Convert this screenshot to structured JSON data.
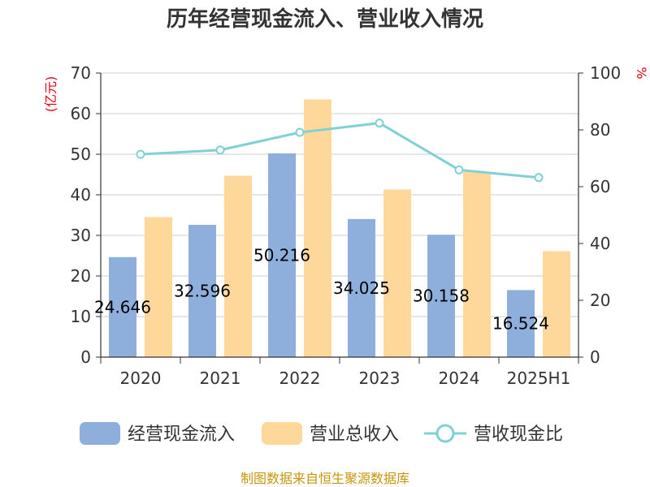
{
  "chart_data": {
    "type": "bar",
    "title": "历年经营现金流入、营业收入情况",
    "categories": [
      "2020",
      "2021",
      "2022",
      "2023",
      "2024",
      "2025H1"
    ],
    "series": [
      {
        "name": "经营现金流入",
        "type": "bar",
        "axis": "left",
        "color": "#8eaedb",
        "values": [
          24.646,
          32.596,
          50.216,
          34.025,
          30.158,
          16.524
        ],
        "labels": [
          "24.646",
          "32.596",
          "50.216",
          "34.025",
          "30.158",
          "16.524"
        ]
      },
      {
        "name": "营业总收入",
        "type": "bar",
        "axis": "left",
        "color": "#fdd89a",
        "values": [
          34.5,
          44.7,
          63.5,
          41.3,
          45.7,
          26.1
        ]
      },
      {
        "name": "营收现金比",
        "type": "line",
        "axis": "right",
        "color": "#7fd1d4",
        "values": [
          71.4,
          72.9,
          79.1,
          82.4,
          65.9,
          63.2
        ]
      }
    ],
    "y_left": {
      "label": "(亿元)",
      "min": 0,
      "max": 70,
      "ticks": [
        "0",
        "10",
        "20",
        "30",
        "40",
        "50",
        "60",
        "70"
      ]
    },
    "y_right": {
      "label": "%",
      "min": 0,
      "max": 100,
      "ticks": [
        "0",
        "20",
        "40",
        "60",
        "80",
        "100"
      ]
    },
    "grid": true,
    "legend": "bottom"
  },
  "source": "制图数据来自恒生聚源数据库"
}
